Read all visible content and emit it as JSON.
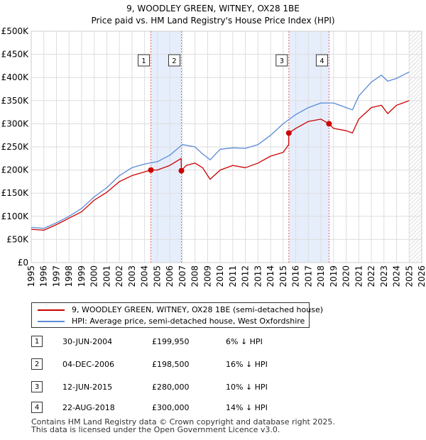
{
  "chart_data": {
    "type": "line",
    "title": "9, WOODLEY GREEN, WITNEY, OX28 1BE",
    "subtitle": "Price paid vs. HM Land Registry's House Price Index (HPI)",
    "xlabel": "",
    "ylabel": "",
    "xlim": [
      1995,
      2026
    ],
    "ylim": [
      0,
      500000
    ],
    "y_ticks": [
      {
        "value": 0,
        "label": "£0"
      },
      {
        "value": 50000,
        "label": "£50K"
      },
      {
        "value": 100000,
        "label": "£100K"
      },
      {
        "value": 150000,
        "label": "£150K"
      },
      {
        "value": 200000,
        "label": "£200K"
      },
      {
        "value": 250000,
        "label": "£250K"
      },
      {
        "value": 300000,
        "label": "£300K"
      },
      {
        "value": 350000,
        "label": "£350K"
      },
      {
        "value": 400000,
        "label": "£400K"
      },
      {
        "value": 450000,
        "label": "£450K"
      },
      {
        "value": 500000,
        "label": "£500K"
      }
    ],
    "x_ticks": [
      "1995",
      "1996",
      "1997",
      "1998",
      "1999",
      "2000",
      "2001",
      "2002",
      "2003",
      "2004",
      "2005",
      "2006",
      "2007",
      "2008",
      "2009",
      "2010",
      "2011",
      "2012",
      "2013",
      "2014",
      "2015",
      "2016",
      "2017",
      "2018",
      "2019",
      "2020",
      "2021",
      "2022",
      "2023",
      "2024",
      "2025",
      "2026"
    ],
    "grid": true,
    "shaded_periods": [
      {
        "from": 2004.5,
        "to": 2006.92
      },
      {
        "from": 2015.45,
        "to": 2018.64
      }
    ],
    "hatched_from": 2025.0,
    "series": [
      {
        "name": "9, WOODLEY GREEN, WITNEY, OX28 1BE (semi-detached house)",
        "color": "#cc0000",
        "x": [
          1995,
          1996,
          1997,
          1998,
          1999,
          2000,
          2001,
          2002,
          2003,
          2004.5,
          2005,
          2006,
          2006.9,
          2006.92,
          2007.3,
          2008,
          2008.6,
          2009.2,
          2010,
          2011,
          2012,
          2013,
          2014,
          2015,
          2015.44,
          2015.45,
          2016,
          2017,
          2018,
          2018.64,
          2019,
          2020,
          2020.5,
          2021,
          2022,
          2022.8,
          2023.3,
          2023.8,
          2024,
          2024.5,
          2025
        ],
        "y": [
          72000,
          70000,
          82000,
          96000,
          110000,
          135000,
          152000,
          175000,
          188000,
          199950,
          200000,
          210000,
          225000,
          198500,
          210000,
          215000,
          205000,
          180000,
          200000,
          210000,
          205000,
          215000,
          230000,
          238000,
          255000,
          280000,
          290000,
          305000,
          310000,
          300000,
          290000,
          285000,
          280000,
          310000,
          335000,
          340000,
          322000,
          335000,
          340000,
          345000,
          350000
        ]
      },
      {
        "name": "HPI: Average price, semi-detached house, West Oxfordshire",
        "color": "#5a8ad6",
        "x": [
          1995,
          1996,
          1997,
          1998,
          1999,
          2000,
          2001,
          2002,
          2003,
          2004,
          2005,
          2006,
          2007,
          2008,
          2008.6,
          2009.2,
          2010,
          2011,
          2012,
          2013,
          2014,
          2015,
          2016,
          2017,
          2018,
          2019,
          2020,
          2020.5,
          2021,
          2022,
          2022.8,
          2023.3,
          2024,
          2024.5,
          2025
        ],
        "y": [
          76000,
          74000,
          86000,
          100000,
          117000,
          142000,
          162000,
          188000,
          205000,
          213000,
          218000,
          232000,
          255000,
          250000,
          235000,
          222000,
          245000,
          248000,
          247000,
          255000,
          275000,
          300000,
          320000,
          335000,
          345000,
          345000,
          335000,
          330000,
          360000,
          390000,
          405000,
          392000,
          398000,
          405000,
          412000
        ]
      }
    ],
    "sales": [
      {
        "label": "1",
        "x": 2004.5,
        "y": 199950
      },
      {
        "label": "2",
        "x": 2006.92,
        "y": 198500
      },
      {
        "label": "3",
        "x": 2015.45,
        "y": 280000
      },
      {
        "label": "4",
        "x": 2018.64,
        "y": 300000
      }
    ]
  },
  "legend": {
    "red_label": "9, WOODLEY GREEN, WITNEY, OX28 1BE (semi-detached house)",
    "blue_label": "HPI: Average price, semi-detached house, West Oxfordshire",
    "red_color": "#cc0000",
    "blue_color": "#5a8ad6"
  },
  "transactions": [
    {
      "num": "1",
      "date": "30-JUN-2004",
      "price": "£199,950",
      "hpi": "6% ↓ HPI"
    },
    {
      "num": "2",
      "date": "04-DEC-2006",
      "price": "£198,500",
      "hpi": "16% ↓ HPI"
    },
    {
      "num": "3",
      "date": "12-JUN-2015",
      "price": "£280,000",
      "hpi": "10% ↓ HPI"
    },
    {
      "num": "4",
      "date": "22-AUG-2018",
      "price": "£300,000",
      "hpi": "14% ↓ HPI"
    }
  ],
  "footer": {
    "line1": "Contains HM Land Registry data © Crown copyright and database right 2025.",
    "line2": "This data is licensed under the Open Government Licence v3.0."
  }
}
